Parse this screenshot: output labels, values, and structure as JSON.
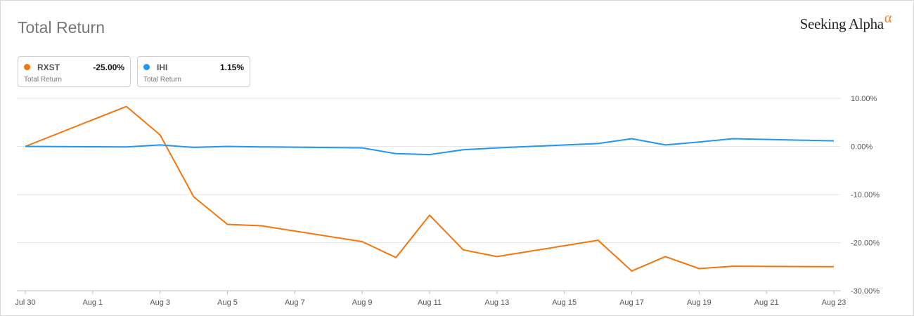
{
  "header": {
    "title": "Total Return",
    "logo_text": "Seeking Alpha",
    "logo_mark": "α"
  },
  "legend": [
    {
      "symbol": "RXST",
      "value": "-25.00%",
      "subtitle": "Total Return",
      "color": "#f4760b"
    },
    {
      "symbol": "IHI",
      "value": "1.15%",
      "subtitle": "Total Return",
      "color": "#2196f3"
    }
  ],
  "chart_data": {
    "type": "line",
    "x": [
      "Jul 30",
      "Aug 2",
      "Aug 3",
      "Aug 4",
      "Aug 5",
      "Aug 6",
      "Aug 9",
      "Aug 10",
      "Aug 11",
      "Aug 12",
      "Aug 13",
      "Aug 16",
      "Aug 17",
      "Aug 18",
      "Aug 19",
      "Aug 20",
      "Aug 23"
    ],
    "x_ticks": [
      "Jul 30",
      "Aug 1",
      "Aug 3",
      "Aug 5",
      "Aug 7",
      "Aug 9",
      "Aug 11",
      "Aug 13",
      "Aug 15",
      "Aug 17",
      "Aug 19",
      "Aug 21",
      "Aug 23"
    ],
    "y_ticks": [
      "10.00%",
      "0.00%",
      "-10.00%",
      "-20.00%",
      "-30.00%"
    ],
    "y_tick_values": [
      10,
      0,
      -10,
      -20,
      -30
    ],
    "ylim": [
      -30,
      10
    ],
    "grid": true,
    "legend_position": "top-left",
    "series": [
      {
        "name": "RXST",
        "color": "#f4760b",
        "values": [
          0,
          8.3,
          2.4,
          -10.5,
          -16.2,
          -16.5,
          -19.8,
          -23.1,
          -14.3,
          -21.5,
          -22.9,
          -19.5,
          -25.9,
          -22.9,
          -25.4,
          -24.9,
          -25.0
        ]
      },
      {
        "name": "IHI",
        "color": "#2196f3",
        "values": [
          0,
          -0.1,
          0.3,
          -0.2,
          0.0,
          -0.1,
          -0.3,
          -1.5,
          -1.7,
          -0.7,
          -0.3,
          0.6,
          1.6,
          0.3,
          0.9,
          1.6,
          1.15
        ]
      }
    ]
  }
}
